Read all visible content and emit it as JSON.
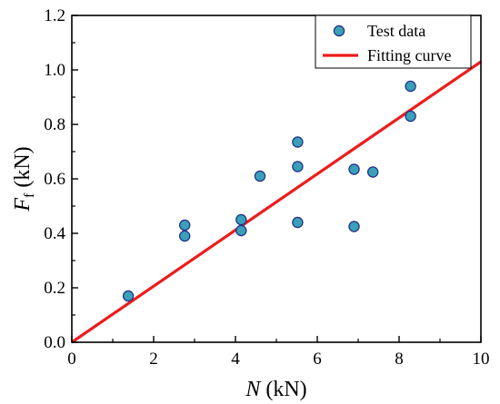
{
  "chart_data": {
    "type": "scatter",
    "title": "",
    "xlabel": {
      "main": "N",
      "unit": " (kN)"
    },
    "ylabel": {
      "main": "F",
      "sub": "f",
      "unit": " (kN)"
    },
    "xlim": [
      0,
      10
    ],
    "ylim": [
      0,
      1.2
    ],
    "x_ticks": [
      0,
      2,
      4,
      6,
      8,
      10
    ],
    "y_ticks": [
      0.0,
      0.2,
      0.4,
      0.6,
      0.8,
      1.0,
      1.2
    ],
    "x_tick_labels": [
      "0",
      "2",
      "4",
      "6",
      "8",
      "10"
    ],
    "y_tick_labels": [
      "0.0",
      "0.2",
      "0.4",
      "0.6",
      "0.8",
      "1.0",
      "1.2"
    ],
    "grid": false,
    "legend_position": "top-right",
    "series": [
      {
        "name": "Test data",
        "kind": "scatter",
        "marker_color": "#3a9fb8",
        "edge_color": "#1f2f8a",
        "points": [
          {
            "x": 1.38,
            "y": 0.17
          },
          {
            "x": 2.76,
            "y": 0.43
          },
          {
            "x": 2.76,
            "y": 0.39
          },
          {
            "x": 4.14,
            "y": 0.45
          },
          {
            "x": 4.14,
            "y": 0.41
          },
          {
            "x": 4.6,
            "y": 0.61
          },
          {
            "x": 5.52,
            "y": 0.735
          },
          {
            "x": 5.52,
            "y": 0.645
          },
          {
            "x": 5.52,
            "y": 0.44
          },
          {
            "x": 6.9,
            "y": 0.635
          },
          {
            "x": 6.9,
            "y": 0.425
          },
          {
            "x": 7.36,
            "y": 0.625
          },
          {
            "x": 8.28,
            "y": 0.94
          },
          {
            "x": 8.28,
            "y": 0.83
          }
        ]
      },
      {
        "name": "Fitting curve",
        "kind": "line",
        "color": "#ee1c1c",
        "points": [
          {
            "x": 0,
            "y": 0
          },
          {
            "x": 10,
            "y": 1.03
          }
        ]
      }
    ]
  }
}
